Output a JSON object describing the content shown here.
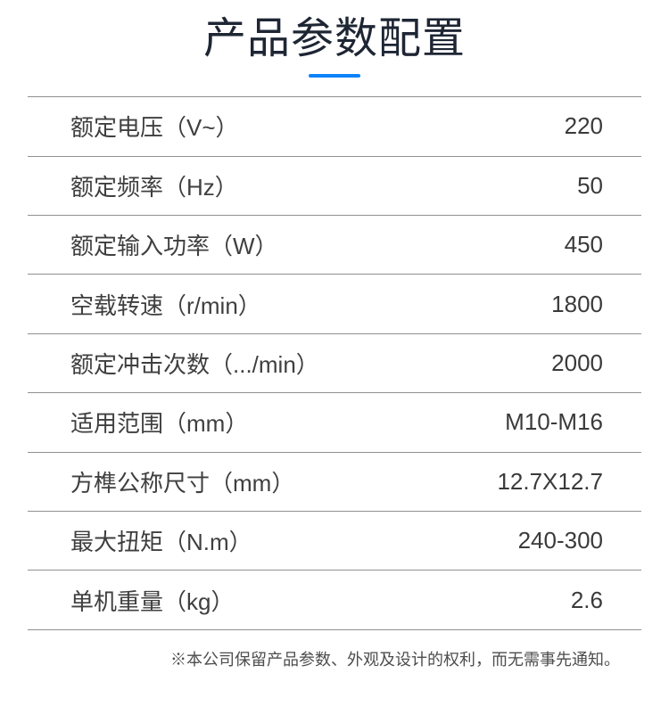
{
  "page": {
    "title": "产品参数配置",
    "footer_note": "※本公司保留产品参数、外观及设计的权利，而无需事先通知。"
  },
  "colors": {
    "title_text": "#1e2634",
    "accent_blue": "#0c83fa",
    "divider_line": "#909090",
    "body_text": "#3f3f3f",
    "footer_text": "#4d4d4d"
  },
  "spec_table": {
    "rows": [
      {
        "label": "额定电压（V~）",
        "value": "220"
      },
      {
        "label": "额定频率（Hz）",
        "value": "50"
      },
      {
        "label": "额定输入功率（W）",
        "value": "450"
      },
      {
        "label": "空载转速（r/min）",
        "value": "1800"
      },
      {
        "label": "额定冲击次数（.../min）",
        "value": "2000"
      },
      {
        "label": "适用范围（mm）",
        "value": "M10-M16"
      },
      {
        "label": "方榫公称尺寸（mm）",
        "value": "12.7X12.7"
      },
      {
        "label": "最大扭矩（N.m）",
        "value": "240-300"
      },
      {
        "label": "单机重量（kg）",
        "value": "2.6"
      }
    ]
  }
}
